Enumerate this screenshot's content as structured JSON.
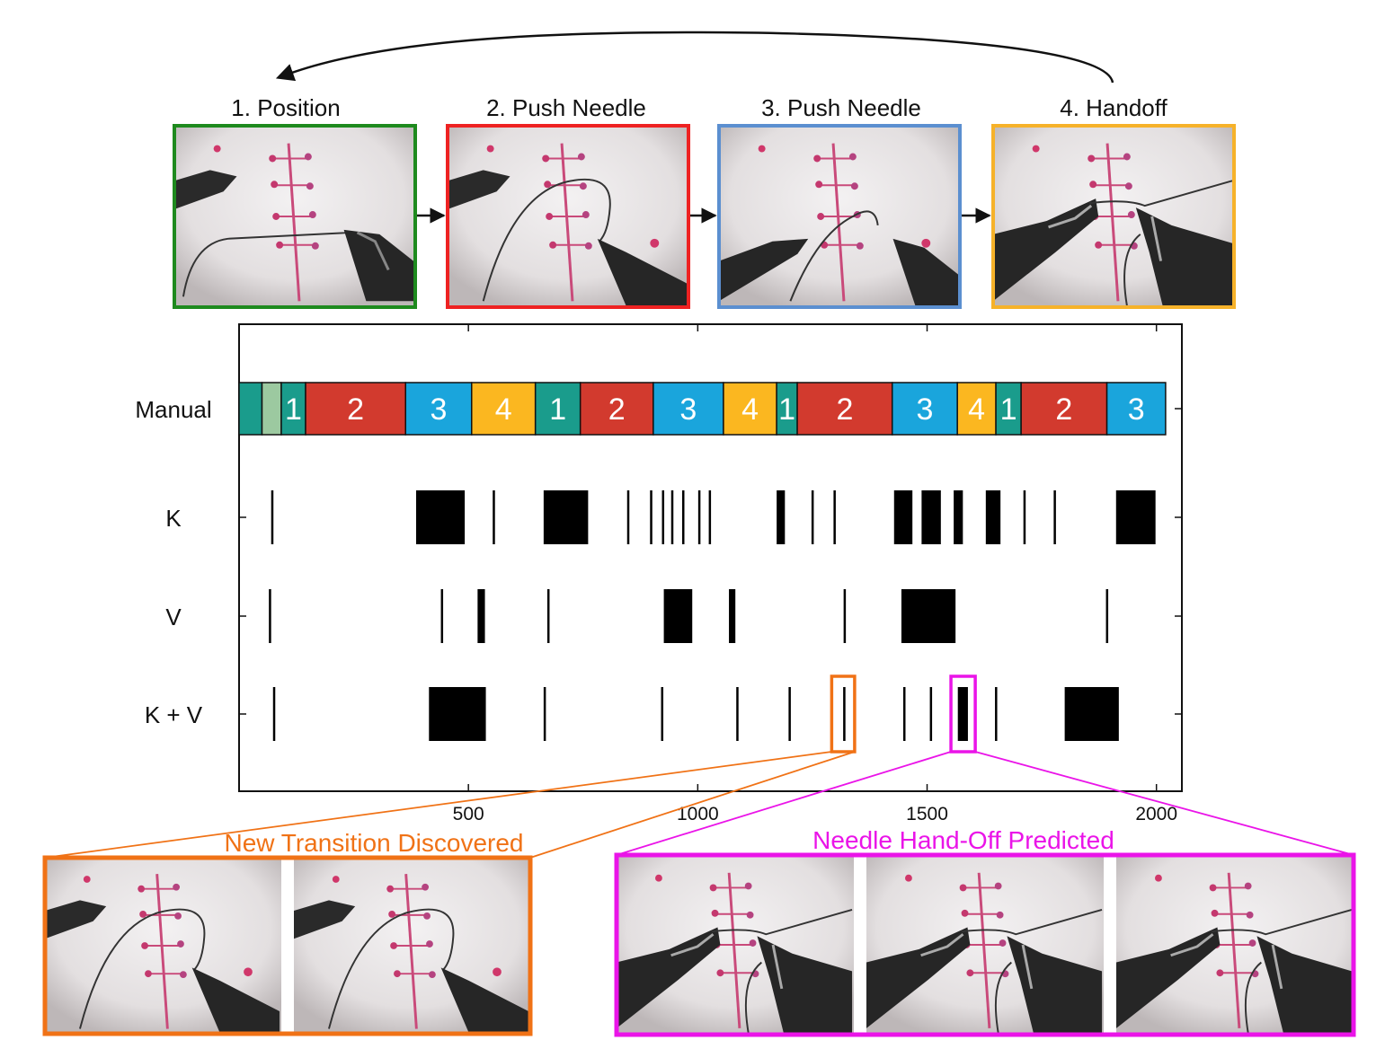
{
  "steps": [
    {
      "label": "1. Position",
      "color": "#1e8a1e"
    },
    {
      "label": "2. Push Needle",
      "color": "#ee2222"
    },
    {
      "label": "3. Push Needle",
      "color": "#5b8fd0"
    },
    {
      "label": "4. Handoff",
      "color": "#f6b22a"
    }
  ],
  "chart_data": {
    "type": "event-raster",
    "x_ticks": [
      500,
      1000,
      1500,
      2000
    ],
    "x_range": [
      0,
      2030
    ],
    "rows": [
      "Manual",
      "K",
      "V",
      "K + V"
    ],
    "segment_colors": {
      "0": "#1a9c8c",
      "0b": "#9cc9a0",
      "1": "#1a9c8c",
      "2": "#d23a2e",
      "3": "#1aa5dc",
      "4": "#fbb720"
    },
    "manual_segments": [
      {
        "start": 0,
        "end": 50,
        "label": "",
        "cls": "0"
      },
      {
        "start": 50,
        "end": 92,
        "label": "",
        "cls": "0b"
      },
      {
        "start": 92,
        "end": 145,
        "label": "1",
        "cls": "1"
      },
      {
        "start": 145,
        "end": 363,
        "label": "2",
        "cls": "2"
      },
      {
        "start": 363,
        "end": 507,
        "label": "3",
        "cls": "3"
      },
      {
        "start": 507,
        "end": 646,
        "label": "4",
        "cls": "4"
      },
      {
        "start": 646,
        "end": 744,
        "label": "1",
        "cls": "1"
      },
      {
        "start": 744,
        "end": 903,
        "label": "2",
        "cls": "2"
      },
      {
        "start": 903,
        "end": 1056,
        "label": "3",
        "cls": "3"
      },
      {
        "start": 1056,
        "end": 1172,
        "label": "4",
        "cls": "4"
      },
      {
        "start": 1172,
        "end": 1217,
        "label": "1",
        "cls": "1"
      },
      {
        "start": 1217,
        "end": 1424,
        "label": "2",
        "cls": "2"
      },
      {
        "start": 1424,
        "end": 1566,
        "label": "3",
        "cls": "3"
      },
      {
        "start": 1566,
        "end": 1650,
        "label": "4",
        "cls": "4"
      },
      {
        "start": 1650,
        "end": 1705,
        "label": "1",
        "cls": "1"
      },
      {
        "start": 1705,
        "end": 1892,
        "label": "2",
        "cls": "2"
      },
      {
        "start": 1892,
        "end": 2020,
        "label": "3",
        "cls": "3"
      }
    ],
    "K": [
      [
        70,
        74
      ],
      [
        386,
        492
      ],
      [
        553,
        557
      ],
      [
        664,
        761
      ],
      [
        846,
        850
      ],
      [
        896,
        900
      ],
      [
        922,
        926
      ],
      [
        942,
        946
      ],
      [
        966,
        970
      ],
      [
        1001,
        1005
      ],
      [
        1024,
        1028
      ],
      [
        1172,
        1190
      ],
      [
        1248,
        1252
      ],
      [
        1296,
        1300
      ],
      [
        1428,
        1468
      ],
      [
        1488,
        1530
      ],
      [
        1558,
        1578
      ],
      [
        1628,
        1660
      ],
      [
        1710,
        1714
      ],
      [
        1776,
        1780
      ],
      [
        1912,
        1998
      ]
    ],
    "V": [
      [
        65,
        69
      ],
      [
        440,
        444
      ],
      [
        520,
        536
      ],
      [
        672,
        676
      ],
      [
        926,
        988
      ],
      [
        1068,
        1082
      ],
      [
        1318,
        1322
      ],
      [
        1444,
        1562
      ],
      [
        1890,
        1894
      ]
    ],
    "K_plus_V": [
      [
        74,
        78
      ],
      [
        414,
        538
      ],
      [
        664,
        668
      ],
      [
        920,
        924
      ],
      [
        1084,
        1088
      ],
      [
        1198,
        1202
      ],
      [
        1317,
        1322
      ],
      [
        1448,
        1452
      ],
      [
        1506,
        1510
      ],
      [
        1567,
        1589
      ],
      [
        1648,
        1652
      ],
      [
        1800,
        1918
      ]
    ],
    "highlights": [
      {
        "row": "K + V",
        "start": 1292,
        "end": 1342,
        "color": "#f07216"
      },
      {
        "row": "K + V",
        "start": 1552,
        "end": 1605,
        "color": "#ea14e8"
      }
    ]
  },
  "callouts": [
    {
      "title": "New Transition Discovered",
      "color": "#f07216",
      "frames": 2
    },
    {
      "title": "Needle Hand-Off Predicted",
      "color": "#ea14e8",
      "frames": 3
    }
  ]
}
